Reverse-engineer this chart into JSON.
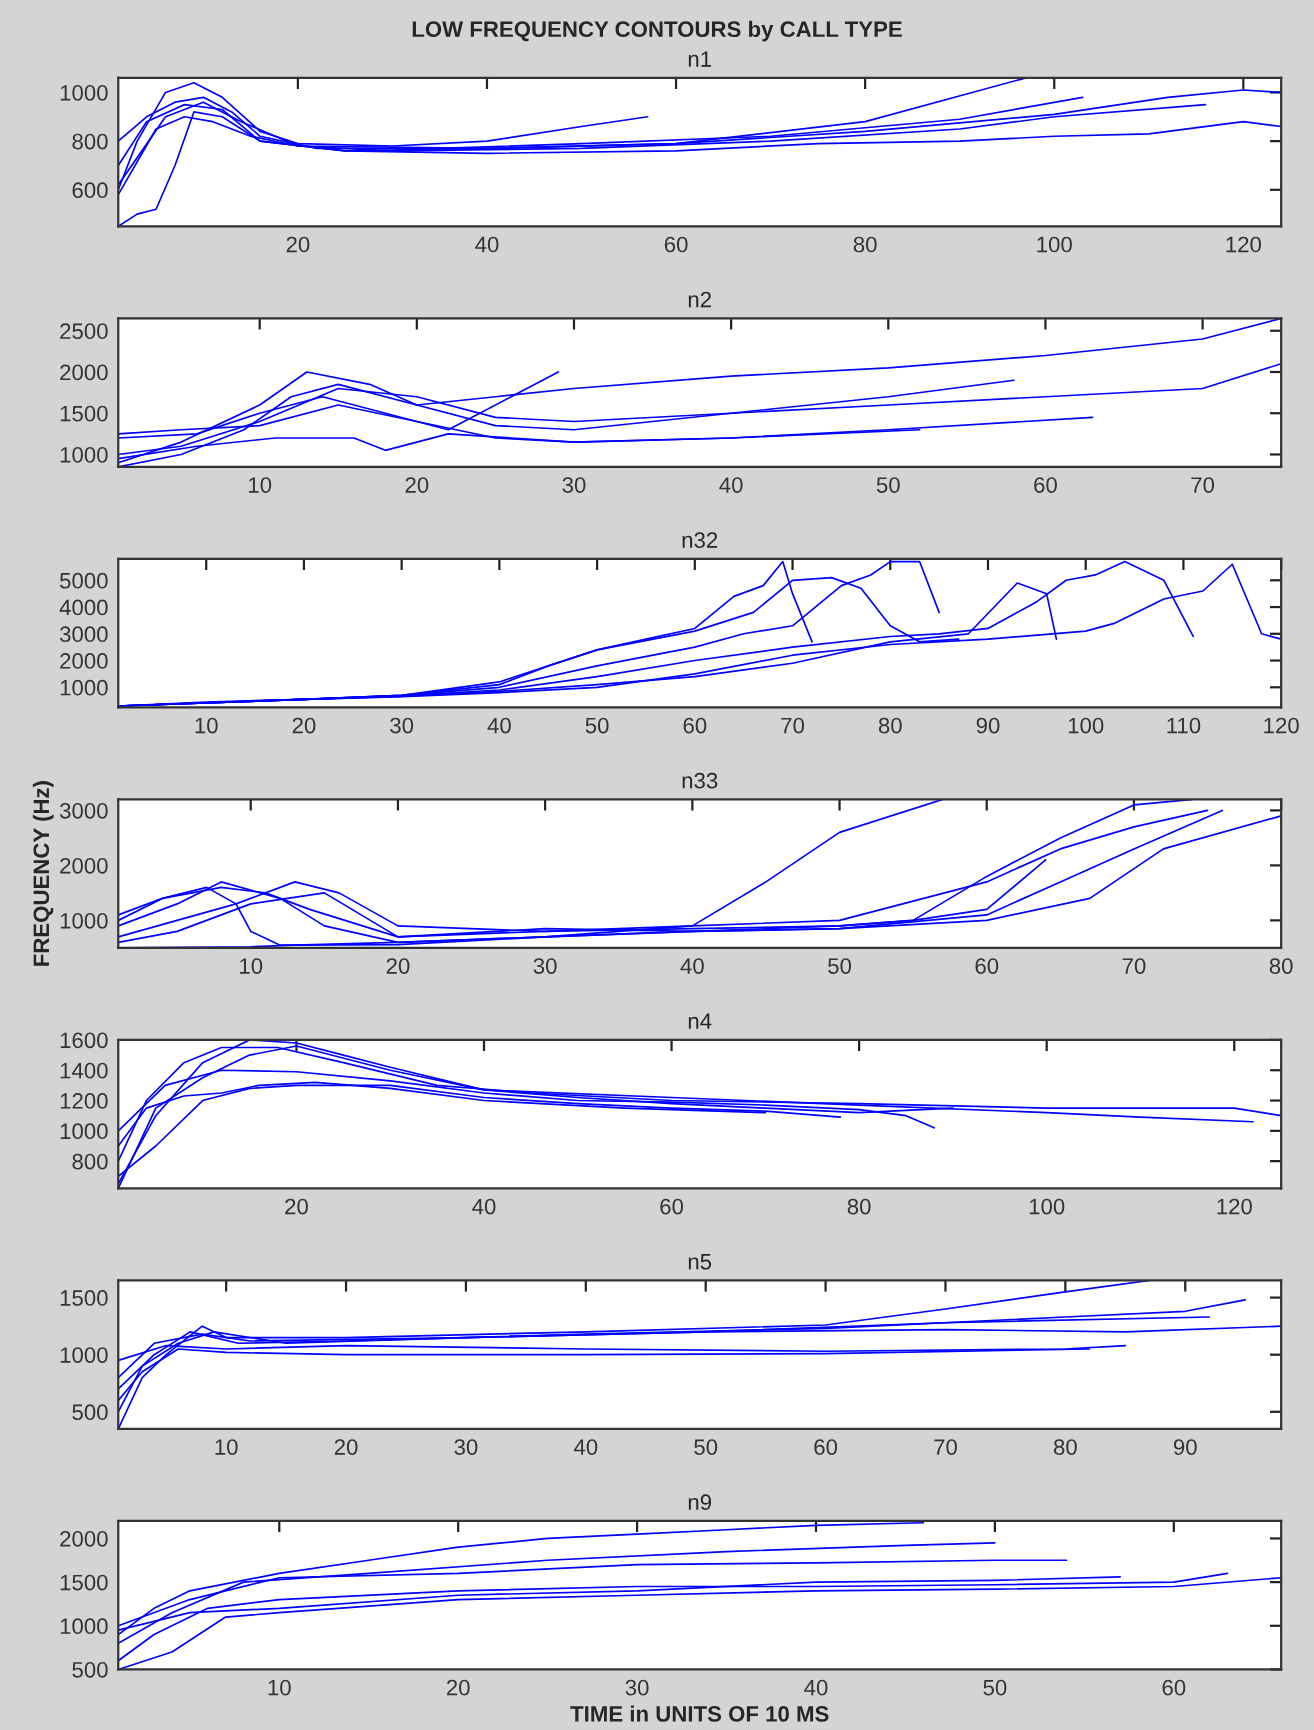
{
  "chart_data": [
    {
      "type": "line",
      "title": "LOW FREQUENCY CONTOURS by CALL TYPE",
      "subtitle": "n1",
      "xlim": [
        1,
        124
      ],
      "xticks": [
        20,
        40,
        60,
        80,
        100,
        120
      ],
      "ylim": [
        450,
        1060
      ],
      "yticks": [
        600,
        800,
        1000
      ],
      "grid": false,
      "series": [
        {
          "color": "#0000ff",
          "x": [
            1,
            3,
            6,
            9,
            12,
            16,
            20,
            30,
            40,
            50,
            57
          ],
          "values": [
            600,
            800,
            1000,
            1040,
            980,
            840,
            790,
            780,
            800,
            860,
            900
          ]
        },
        {
          "color": "#0000ff",
          "x": [
            1,
            4,
            7,
            10,
            13,
            16,
            22,
            35,
            50,
            70,
            90,
            103
          ],
          "values": [
            800,
            900,
            960,
            980,
            920,
            820,
            770,
            770,
            790,
            820,
            890,
            980
          ]
        },
        {
          "color": "#0000ff",
          "x": [
            1,
            3,
            5,
            7,
            9,
            12,
            16,
            25,
            40,
            60,
            80,
            97
          ],
          "values": [
            450,
            500,
            520,
            700,
            920,
            900,
            800,
            760,
            770,
            790,
            880,
            1060
          ]
        },
        {
          "color": "#0000ff",
          "x": [
            1,
            5,
            8,
            11,
            15,
            20,
            30,
            50,
            70,
            90,
            100,
            116
          ],
          "values": [
            580,
            850,
            900,
            880,
            820,
            780,
            760,
            770,
            800,
            850,
            900,
            950
          ]
        },
        {
          "color": "#0000ff",
          "x": [
            1,
            4,
            8,
            12,
            16,
            25,
            40,
            60,
            75,
            90,
            100,
            110,
            120,
            124
          ],
          "values": [
            700,
            880,
            950,
            930,
            800,
            760,
            750,
            760,
            790,
            800,
            820,
            830,
            880,
            860
          ]
        },
        {
          "color": "#0000ff",
          "x": [
            1,
            6,
            10,
            14,
            20,
            40,
            60,
            80,
            100,
            112,
            120,
            124
          ],
          "values": [
            620,
            900,
            960,
            880,
            780,
            770,
            790,
            840,
            910,
            980,
            1010,
            1000
          ]
        }
      ]
    },
    {
      "type": "line",
      "title": "n2",
      "xlim": [
        1,
        75
      ],
      "xticks": [
        10,
        20,
        30,
        40,
        50,
        60,
        70
      ],
      "ylim": [
        850,
        2650
      ],
      "yticks": [
        1000,
        1500,
        2000,
        2500
      ],
      "grid": false,
      "series": [
        {
          "color": "#0000ff",
          "x": [
            1,
            5,
            10,
            13,
            17,
            20,
            25,
            30,
            40,
            50,
            60,
            70,
            75
          ],
          "values": [
            900,
            1150,
            1600,
            2000,
            1850,
            1600,
            1700,
            1800,
            1950,
            2050,
            2200,
            2400,
            2650
          ]
        },
        {
          "color": "#0000ff",
          "x": [
            1,
            5,
            10,
            15,
            20,
            25,
            30,
            40,
            50,
            60,
            70,
            75
          ],
          "values": [
            1000,
            1100,
            1400,
            1800,
            1700,
            1450,
            1400,
            1500,
            1600,
            1700,
            1800,
            2100
          ]
        },
        {
          "color": "#0000ff",
          "x": [
            1,
            6,
            10,
            14,
            18,
            22,
            26,
            29
          ],
          "values": [
            1200,
            1250,
            1500,
            1700,
            1500,
            1300,
            1700,
            2000
          ]
        },
        {
          "color": "#0000ff",
          "x": [
            1,
            5,
            9,
            12,
            15,
            20,
            25,
            30,
            40,
            50,
            58
          ],
          "values": [
            850,
            1000,
            1300,
            1700,
            1850,
            1600,
            1350,
            1300,
            1500,
            1700,
            1900
          ]
        },
        {
          "color": "#0000ff",
          "x": [
            1,
            5,
            10,
            15,
            20,
            25,
            30,
            40,
            50,
            63
          ],
          "values": [
            1250,
            1300,
            1350,
            1600,
            1400,
            1200,
            1150,
            1200,
            1300,
            1450
          ]
        },
        {
          "color": "#0000ff",
          "x": [
            1,
            6,
            11,
            16,
            18,
            22,
            30,
            40,
            52
          ],
          "values": [
            950,
            1100,
            1200,
            1200,
            1050,
            1250,
            1150,
            1200,
            1300
          ]
        }
      ]
    },
    {
      "type": "line",
      "title": "n32",
      "xlim": [
        1,
        120
      ],
      "xticks": [
        10,
        20,
        30,
        40,
        50,
        60,
        70,
        80,
        90,
        100,
        110,
        120
      ],
      "ylim": [
        250,
        5800
      ],
      "yticks": [
        1000,
        2000,
        3000,
        4000,
        5000
      ],
      "grid": false,
      "series": [
        {
          "color": "#0000ff",
          "x": [
            1,
            10,
            20,
            30,
            40,
            45,
            50,
            55,
            60,
            64,
            67,
            69,
            70,
            72
          ],
          "values": [
            300,
            450,
            550,
            700,
            1100,
            1800,
            2400,
            2800,
            3200,
            4400,
            4800,
            5700,
            4500,
            2700
          ]
        },
        {
          "color": "#0000ff",
          "x": [
            1,
            20,
            30,
            40,
            50,
            60,
            65,
            70,
            75,
            78,
            80,
            83,
            85
          ],
          "values": [
            300,
            550,
            700,
            1000,
            1800,
            2500,
            3000,
            3300,
            4800,
            5200,
            5700,
            5700,
            3800
          ]
        },
        {
          "color": "#0000ff",
          "x": [
            1,
            20,
            30,
            40,
            50,
            60,
            70,
            80,
            85,
            90,
            95,
            98,
            101,
            104,
            108,
            111
          ],
          "values": [
            300,
            550,
            680,
            900,
            1400,
            2000,
            2500,
            2900,
            3000,
            3200,
            4200,
            5000,
            5200,
            5700,
            5000,
            2900
          ]
        },
        {
          "color": "#0000ff",
          "x": [
            1,
            20,
            30,
            40,
            50,
            60,
            70,
            80,
            90,
            100,
            103,
            108,
            112,
            115,
            118,
            120
          ],
          "values": [
            300,
            550,
            650,
            800,
            1000,
            1500,
            2200,
            2600,
            2800,
            3100,
            3400,
            4300,
            4600,
            5600,
            3000,
            2800
          ]
        },
        {
          "color": "#0000ff",
          "x": [
            1,
            20,
            30,
            40,
            50,
            60,
            66,
            70,
            74,
            77,
            80,
            83,
            87
          ],
          "values": [
            300,
            550,
            700,
            1200,
            2400,
            3100,
            3800,
            5000,
            5100,
            4700,
            3300,
            2700,
            2800
          ]
        },
        {
          "color": "#0000ff",
          "x": [
            1,
            20,
            30,
            40,
            50,
            60,
            70,
            80,
            88,
            93,
            96,
            97
          ],
          "values": [
            300,
            550,
            660,
            850,
            1100,
            1400,
            1900,
            2700,
            3000,
            4900,
            4500,
            2800
          ]
        }
      ]
    },
    {
      "type": "line",
      "title": "n33",
      "ylabel": "FREQUENCY (Hz)",
      "xlim": [
        1,
        80
      ],
      "xticks": [
        10,
        20,
        30,
        40,
        50,
        60,
        70,
        80
      ],
      "ylim": [
        500,
        3200
      ],
      "yticks": [
        1000,
        2000,
        3000
      ],
      "grid": false,
      "series": [
        {
          "color": "#0000ff",
          "x": [
            1,
            5,
            8,
            12,
            15,
            20,
            30,
            40,
            45,
            50,
            57
          ],
          "values": [
            900,
            1300,
            1700,
            1400,
            900,
            600,
            700,
            900,
            1700,
            2600,
            3200
          ]
        },
        {
          "color": "#0000ff",
          "x": [
            1,
            4,
            8,
            11,
            14,
            20,
            30,
            40,
            50,
            60,
            65,
            70,
            75
          ],
          "values": [
            1100,
            1400,
            1600,
            1500,
            1200,
            700,
            800,
            900,
            1000,
            1700,
            2300,
            2700,
            3000
          ]
        },
        {
          "color": "#0000ff",
          "x": [
            1,
            5,
            9,
            13,
            16,
            20,
            30,
            40,
            50,
            55,
            60,
            65,
            70,
            74
          ],
          "values": [
            700,
            1000,
            1300,
            1700,
            1500,
            900,
            800,
            850,
            900,
            1000,
            1800,
            2500,
            3100,
            3200
          ]
        },
        {
          "color": "#0000ff",
          "x": [
            1,
            4,
            7,
            9,
            10,
            12,
            20,
            30,
            40,
            50,
            60,
            65,
            70,
            76
          ],
          "values": [
            1000,
            1400,
            1600,
            1300,
            800,
            550,
            560,
            700,
            800,
            850,
            1100,
            1700,
            2300,
            3000
          ]
        },
        {
          "color": "#0000ff",
          "x": [
            1,
            5,
            10,
            15,
            20,
            30,
            40,
            50,
            60,
            67,
            72,
            80
          ],
          "values": [
            600,
            800,
            1300,
            1500,
            700,
            850,
            800,
            850,
            1000,
            1400,
            2300,
            2900
          ]
        },
        {
          "color": "#0000ff",
          "x": [
            1,
            10,
            13,
            20,
            30,
            40,
            50,
            55,
            60,
            64
          ],
          "values": [
            500,
            520,
            550,
            600,
            700,
            800,
            900,
            1000,
            1200,
            2100
          ]
        }
      ]
    },
    {
      "type": "line",
      "title": "n4",
      "xlim": [
        1,
        125
      ],
      "xticks": [
        20,
        40,
        60,
        80,
        100,
        120
      ],
      "ylim": [
        620,
        1600
      ],
      "yticks": [
        800,
        1000,
        1200,
        1400,
        1600
      ],
      "grid": false,
      "series": [
        {
          "color": "#0000ff",
          "x": [
            1,
            5,
            10,
            15,
            20,
            25,
            30,
            40,
            50,
            60,
            70,
            80,
            90
          ],
          "values": [
            650,
            1100,
            1450,
            1600,
            1580,
            1500,
            1420,
            1270,
            1220,
            1180,
            1150,
            1120,
            1150
          ]
        },
        {
          "color": "#0000ff",
          "x": [
            1,
            4,
            8,
            12,
            18,
            25,
            35,
            45,
            60,
            80,
            100,
            120,
            125
          ],
          "values": [
            800,
            1200,
            1450,
            1550,
            1550,
            1450,
            1300,
            1250,
            1200,
            1180,
            1150,
            1150,
            1100
          ]
        },
        {
          "color": "#0000ff",
          "x": [
            1,
            5,
            10,
            15,
            20,
            30,
            40,
            50,
            60,
            70,
            78
          ],
          "values": [
            700,
            900,
            1200,
            1280,
            1300,
            1300,
            1220,
            1180,
            1150,
            1130,
            1090
          ]
        },
        {
          "color": "#0000ff",
          "x": [
            1,
            6,
            12,
            20,
            30,
            40,
            50,
            60,
            70,
            80,
            85,
            88
          ],
          "values": [
            1000,
            1300,
            1400,
            1390,
            1330,
            1250,
            1200,
            1190,
            1170,
            1140,
            1100,
            1020
          ]
        },
        {
          "color": "#0000ff",
          "x": [
            1,
            5,
            10,
            15,
            20,
            30,
            40,
            60,
            80,
            100,
            110,
            122
          ],
          "values": [
            620,
            1150,
            1350,
            1500,
            1560,
            1400,
            1270,
            1220,
            1170,
            1120,
            1090,
            1060
          ]
        },
        {
          "color": "#0000ff",
          "x": [
            1,
            4,
            8,
            12,
            16,
            22,
            30,
            40,
            55,
            70
          ],
          "values": [
            900,
            1150,
            1230,
            1250,
            1300,
            1320,
            1280,
            1200,
            1150,
            1120
          ]
        }
      ]
    },
    {
      "type": "line",
      "title": "n5",
      "xlim": [
        1,
        98
      ],
      "xticks": [
        10,
        20,
        30,
        40,
        50,
        60,
        70,
        80,
        90
      ],
      "ylim": [
        350,
        1650
      ],
      "yticks": [
        500,
        1000,
        1500
      ],
      "grid": false,
      "series": [
        {
          "color": "#0000ff",
          "x": [
            1,
            3,
            5,
            8,
            10,
            20,
            40,
            60,
            70,
            80,
            87
          ],
          "values": [
            350,
            800,
            1000,
            1250,
            1150,
            1150,
            1200,
            1260,
            1400,
            1550,
            1650
          ]
        },
        {
          "color": "#0000ff",
          "x": [
            1,
            4,
            7,
            11,
            20,
            40,
            60,
            80,
            90,
            95
          ],
          "values": [
            700,
            1000,
            1200,
            1100,
            1120,
            1180,
            1230,
            1330,
            1380,
            1480
          ]
        },
        {
          "color": "#0000ff",
          "x": [
            1,
            3,
            6,
            9,
            15,
            30,
            50,
            70,
            85,
            98
          ],
          "values": [
            500,
            900,
            1100,
            1200,
            1100,
            1150,
            1200,
            1220,
            1200,
            1250
          ]
        },
        {
          "color": "#0000ff",
          "x": [
            1,
            5,
            10,
            20,
            40,
            60,
            80,
            85
          ],
          "values": [
            950,
            1080,
            1050,
            1080,
            1050,
            1030,
            1050,
            1080
          ]
        },
        {
          "color": "#0000ff",
          "x": [
            1,
            3,
            6,
            10,
            20,
            40,
            60,
            82
          ],
          "values": [
            600,
            850,
            1050,
            1020,
            1000,
            1000,
            1010,
            1050
          ]
        },
        {
          "color": "#0000ff",
          "x": [
            1,
            4,
            8,
            12,
            30,
            50,
            70,
            92
          ],
          "values": [
            800,
            1100,
            1180,
            1120,
            1150,
            1200,
            1280,
            1330
          ]
        }
      ]
    },
    {
      "type": "line",
      "title": "n9",
      "xlabel": "TIME in UNITS OF 10 MS",
      "xlim": [
        1,
        66
      ],
      "xticks": [
        10,
        20,
        30,
        40,
        50,
        60
      ],
      "ylim": [
        500,
        2200
      ],
      "yticks": [
        500,
        1000,
        1500,
        2000
      ],
      "grid": false,
      "series": [
        {
          "color": "#0000ff",
          "x": [
            1,
            3,
            5,
            10,
            15,
            20,
            25,
            30,
            35,
            40,
            46
          ],
          "values": [
            900,
            1200,
            1400,
            1600,
            1750,
            1900,
            2000,
            2050,
            2100,
            2150,
            2180
          ]
        },
        {
          "color": "#0000ff",
          "x": [
            1,
            4,
            8,
            15,
            25,
            35,
            45,
            50
          ],
          "values": [
            800,
            1150,
            1500,
            1600,
            1750,
            1850,
            1920,
            1950
          ]
        },
        {
          "color": "#0000ff",
          "x": [
            1,
            5,
            10,
            20,
            30,
            40,
            50,
            54
          ],
          "values": [
            1000,
            1300,
            1550,
            1600,
            1700,
            1720,
            1750,
            1750
          ]
        },
        {
          "color": "#0000ff",
          "x": [
            1,
            4,
            7,
            10,
            20,
            30,
            40,
            50,
            60,
            66
          ],
          "values": [
            500,
            700,
            1100,
            1150,
            1300,
            1350,
            1400,
            1420,
            1450,
            1550
          ]
        },
        {
          "color": "#0000ff",
          "x": [
            1,
            3,
            6,
            10,
            20,
            30,
            40,
            50,
            60,
            63
          ],
          "values": [
            600,
            900,
            1200,
            1300,
            1400,
            1450,
            1450,
            1470,
            1500,
            1600
          ]
        },
        {
          "color": "#0000ff",
          "x": [
            1,
            5,
            10,
            20,
            30,
            40,
            50,
            57
          ],
          "values": [
            950,
            1150,
            1200,
            1350,
            1400,
            1500,
            1520,
            1560
          ]
        }
      ]
    }
  ]
}
